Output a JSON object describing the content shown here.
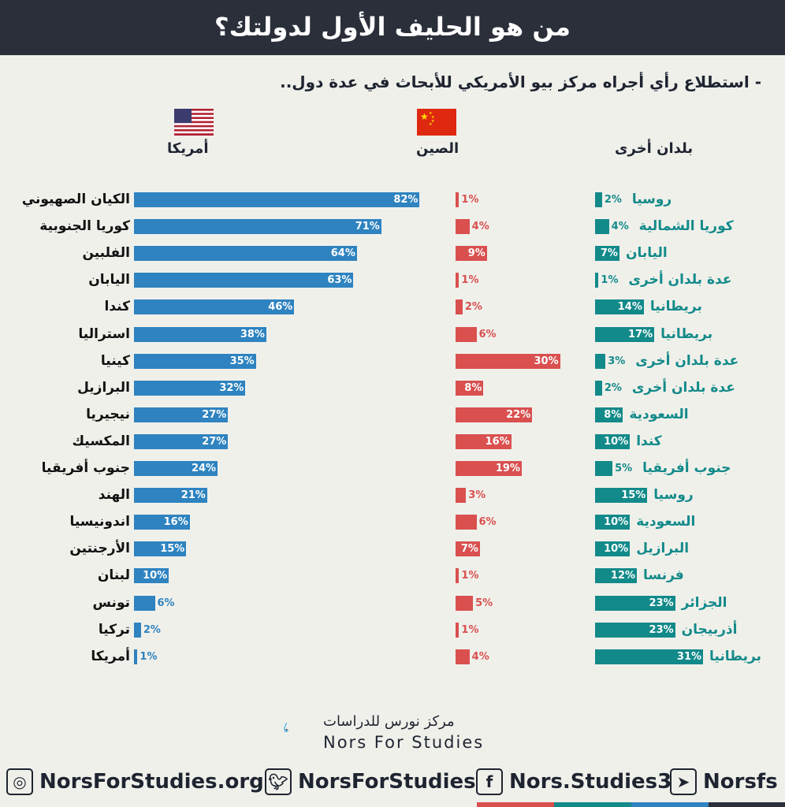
{
  "header": {
    "title": "من هو الحليف الأول لدولتك؟",
    "subtitle": "- استطلاع رأي أجراه مركز بيو الأمريكي للأبحاث في عدة دول.."
  },
  "columns": {
    "us": "أمريكا",
    "china": "الصين",
    "others": "بلدان أخرى"
  },
  "colors": {
    "us": "#2e83c0",
    "china": "#d9504f",
    "others": "#138a8a",
    "title_bg": "#2b2f3a"
  },
  "chart_data": {
    "type": "bar",
    "orientation": "horizontal",
    "categories": [
      "الكيان الصهيوني",
      "كوريا الجنوبية",
      "الفلبين",
      "اليابان",
      "كندا",
      "استراليا",
      "كينيا",
      "البرازيل",
      "نيجيريا",
      "المكسيك",
      "جنوب أفريقيا",
      "الهند",
      "اندونيسيا",
      "الأرجنتين",
      "لبنان",
      "تونس",
      "تركيا",
      "أمريكا"
    ],
    "series": [
      {
        "name": "أمريكا",
        "values": [
          82,
          71,
          64,
          63,
          46,
          38,
          35,
          32,
          27,
          27,
          24,
          21,
          16,
          15,
          10,
          6,
          2,
          1
        ]
      },
      {
        "name": "الصين",
        "values": [
          1,
          4,
          9,
          1,
          2,
          6,
          30,
          8,
          22,
          16,
          19,
          3,
          6,
          7,
          1,
          5,
          1,
          4
        ]
      },
      {
        "name": "بلدان أخرى",
        "values": [
          2,
          4,
          7,
          1,
          14,
          17,
          3,
          2,
          8,
          10,
          5,
          15,
          10,
          10,
          12,
          23,
          23,
          31
        ],
        "labels": [
          "روسيا",
          "كوريا الشمالية",
          "اليابان",
          "عدة بلدان أخرى",
          "بريطانيا",
          "بريطانيا",
          "عدة بلدان أخرى",
          "عدة بلدان أخرى",
          "السعودية",
          "كندا",
          "جنوب أفريقيا",
          "روسيا",
          "السعودية",
          "البرازيل",
          "فرنسا",
          "الجزائر",
          "أذربيجان",
          "بريطانيا"
        ]
      }
    ],
    "unit": "%"
  },
  "logo": {
    "arabic": "مركز نورس للدراسات",
    "english": "Nors For Studies"
  },
  "social": [
    {
      "icon": "dribbble-icon",
      "label": "NorsForStudies.org"
    },
    {
      "icon": "twitter-icon",
      "label": "NorsForStudies"
    },
    {
      "icon": "facebook-icon",
      "label": "Nors.Studies3"
    },
    {
      "icon": "telegram-icon",
      "label": "Norsfs"
    }
  ]
}
